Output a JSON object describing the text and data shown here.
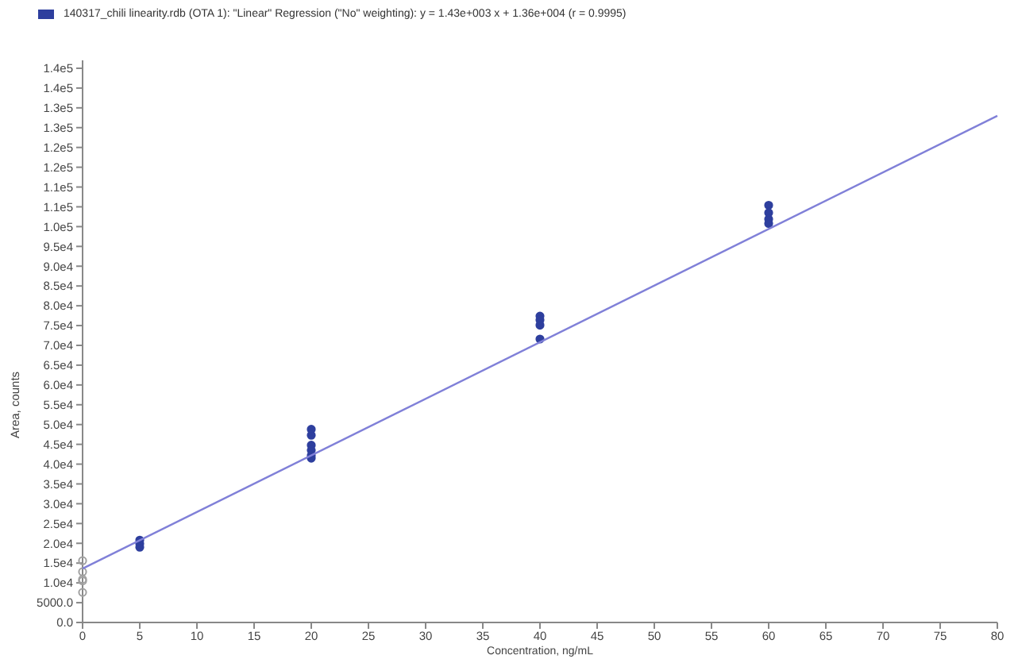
{
  "chart_data": {
    "type": "scatter",
    "xlabel": "Concentration, ng/mL",
    "ylabel": "Area, counts",
    "xlim": [
      0,
      80
    ],
    "xticks": [
      0,
      5,
      10,
      15,
      20,
      25,
      30,
      35,
      40,
      45,
      50,
      55,
      60,
      65,
      70,
      75,
      80
    ],
    "ylim": [
      0,
      142000
    ],
    "yticks": [
      {
        "value": 0,
        "label": "0.0"
      },
      {
        "value": 5000,
        "label": "5000.0"
      },
      {
        "value": 10000,
        "label": "1.0e4"
      },
      {
        "value": 15000,
        "label": "1.5e4"
      },
      {
        "value": 20000,
        "label": "2.0e4"
      },
      {
        "value": 25000,
        "label": "2.5e4"
      },
      {
        "value": 30000,
        "label": "3.0e4"
      },
      {
        "value": 35000,
        "label": "3.5e4"
      },
      {
        "value": 40000,
        "label": "4.0e4"
      },
      {
        "value": 45000,
        "label": "4.5e4"
      },
      {
        "value": 50000,
        "label": "5.0e4"
      },
      {
        "value": 55000,
        "label": "5.5e4"
      },
      {
        "value": 60000,
        "label": "6.0e4"
      },
      {
        "value": 65000,
        "label": "6.5e4"
      },
      {
        "value": 70000,
        "label": "7.0e4"
      },
      {
        "value": 75000,
        "label": "7.5e4"
      },
      {
        "value": 80000,
        "label": "8.0e4"
      },
      {
        "value": 85000,
        "label": "8.5e4"
      },
      {
        "value": 90000,
        "label": "9.0e4"
      },
      {
        "value": 95000,
        "label": "9.5e4"
      },
      {
        "value": 100000,
        "label": "1.0e5"
      },
      {
        "value": 105000,
        "label": "1.1e5"
      },
      {
        "value": 110000,
        "label": "1.1e5"
      },
      {
        "value": 115000,
        "label": "1.2e5"
      },
      {
        "value": 120000,
        "label": "1.2e5"
      },
      {
        "value": 125000,
        "label": "1.3e5"
      },
      {
        "value": 130000,
        "label": "1.3e5"
      },
      {
        "value": 135000,
        "label": "1.4e5"
      },
      {
        "value": 140000,
        "label": "1.4e5"
      }
    ],
    "legend": "top left",
    "series": [
      {
        "name": "140317_chili linearity.rdb (OTA 1): \"Linear\" Regression (\"No\" weighting): y = 1.43e+003 x + 1.36e+004 (r = 0.9995)",
        "color": "#2e3f9e",
        "marker": "circle",
        "x": [
          5,
          5,
          5,
          20,
          20,
          20,
          20,
          20,
          20,
          40,
          40,
          40,
          40,
          60,
          60,
          60,
          60
        ],
        "values": [
          20800,
          19900,
          19000,
          48800,
          47300,
          44800,
          43500,
          42200,
          41500,
          77400,
          76400,
          75100,
          71600,
          105400,
          103500,
          101900,
          100800
        ]
      },
      {
        "color": "#a0a0a0",
        "marker": "circle",
        "x": [
          0,
          0,
          0,
          0,
          0
        ],
        "values": [
          15600,
          12800,
          10900,
          10500,
          7600
        ]
      },
      {
        "type": "line",
        "color": "#8080d8",
        "x": [
          0,
          80
        ],
        "values": [
          13600,
          128000
        ]
      }
    ]
  }
}
